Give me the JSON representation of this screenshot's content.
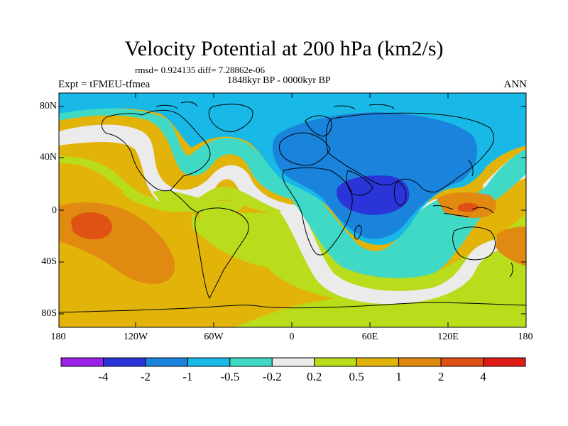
{
  "title": "Velocity Potential at 200 hPa (km2/s)",
  "stats": "rmsd= 0.924135 diff= 7.28862e-06",
  "period": "1848kyr BP - 0000kyr BP",
  "experiment": "Expt = tFMEU-tfmea",
  "season": "ANN",
  "y_axis_labels": [
    "80N",
    "40N",
    "0",
    "40S",
    "80S"
  ],
  "x_axis_labels": [
    "180",
    "120W",
    "60W",
    "0",
    "60E",
    "120E",
    "180"
  ],
  "colorbar": {
    "colors": [
      "#9b21ea",
      "#2a34d8",
      "#1a83db",
      "#18b9e6",
      "#3fd9c6",
      "#ebebeb",
      "#b9dc1c",
      "#e2b40a",
      "#e08a12",
      "#e05114",
      "#e01a14"
    ],
    "labels": [
      "-4",
      "-2",
      "-1",
      "-0.5",
      "-0.2",
      "0.2",
      "0.5",
      "1",
      "2",
      "4"
    ]
  },
  "map_colors": {
    "ocean_base": "#e2b40a",
    "coast": "#000000",
    "frame": "#000000"
  }
}
